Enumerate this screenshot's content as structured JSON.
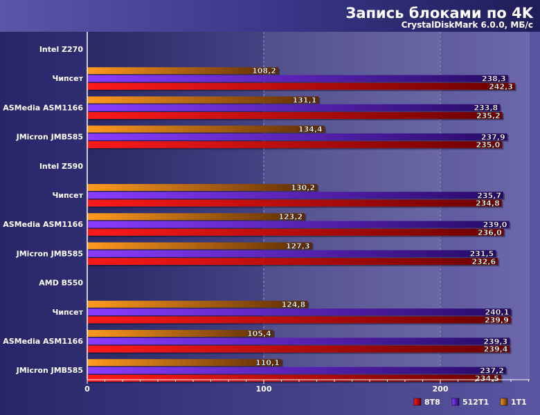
{
  "chart_data": {
    "type": "bar",
    "orientation": "horizontal",
    "title": "Запись блоками по 4K",
    "subtitle": "CrystalDiskMark 6.0.0, МБ/с",
    "xlim": [
      0,
      250
    ],
    "xticks": [
      0,
      100,
      200
    ],
    "grid": true,
    "legend_position": "bottom-right",
    "series_names": [
      "8T8",
      "512T1",
      "1T1"
    ],
    "colors": {
      "8T8": "#e8001c",
      "512T1": "#6a1ec8",
      "1T1": "#ff8a14"
    },
    "groups": [
      {
        "label": "Intel Z270",
        "items": [
          {
            "label": "Чипсет",
            "values": {
              "1T1": "108,2",
              "512T1": "238,3",
              "8T8": "242,3"
            }
          },
          {
            "label": "ASMedia ASM1166",
            "values": {
              "1T1": "131,1",
              "512T1": "233,8",
              "8T8": "235,2"
            }
          },
          {
            "label": "JMicron JMB585",
            "values": {
              "1T1": "134,4",
              "512T1": "237,9",
              "8T8": "235,0"
            }
          }
        ]
      },
      {
        "label": "Intel Z590",
        "items": [
          {
            "label": "Чипсет",
            "values": {
              "1T1": "130,2",
              "512T1": "235,7",
              "8T8": "234,8"
            }
          },
          {
            "label": "ASMedia ASM1166",
            "values": {
              "1T1": "123,2",
              "512T1": "239,0",
              "8T8": "236,0"
            }
          },
          {
            "label": "JMicron JMB585",
            "values": {
              "1T1": "127,3",
              "512T1": "231,5",
              "8T8": "232,6"
            }
          }
        ]
      },
      {
        "label": "AMD B550",
        "items": [
          {
            "label": "Чипсет",
            "values": {
              "1T1": "124,8",
              "512T1": "240,1",
              "8T8": "239,9"
            }
          },
          {
            "label": "ASMedia ASM1166",
            "values": {
              "1T1": "105,4",
              "512T1": "239,3",
              "8T8": "239,4"
            }
          },
          {
            "label": "JMicron JMB585",
            "values": {
              "1T1": "110,1",
              "512T1": "237,2",
              "8T8": "234,5"
            }
          }
        ]
      }
    ]
  }
}
